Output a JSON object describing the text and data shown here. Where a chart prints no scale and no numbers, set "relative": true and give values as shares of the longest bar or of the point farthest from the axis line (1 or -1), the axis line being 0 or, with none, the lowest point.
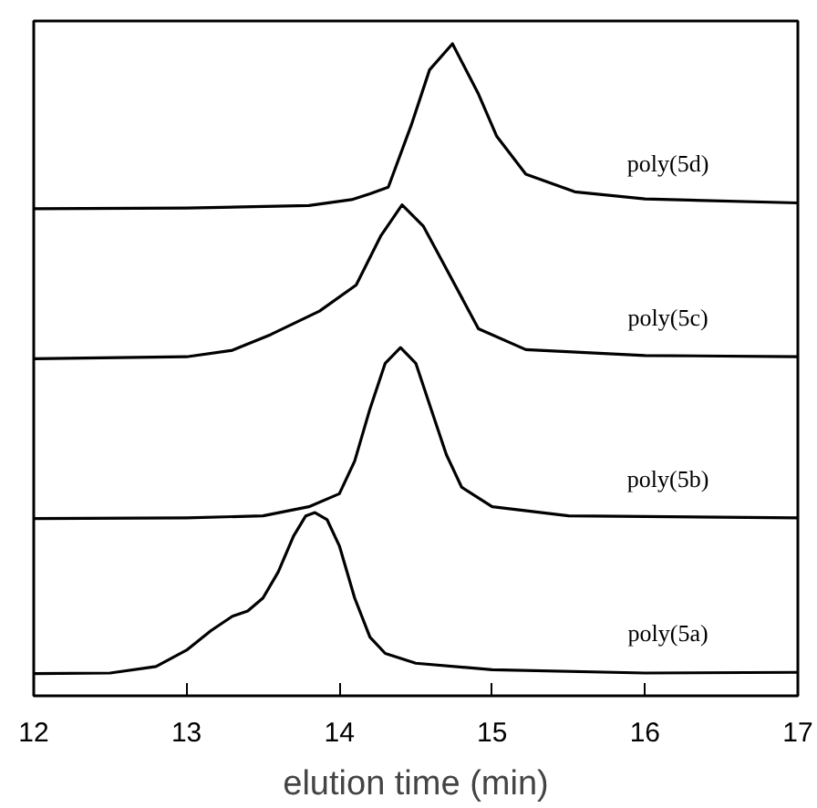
{
  "chart_data": {
    "type": "line",
    "relative": true,
    "xlabel": "elution time (min)",
    "xlim": [
      12,
      17
    ],
    "xticks": [
      12,
      13,
      14,
      15,
      16,
      17
    ],
    "grid": false,
    "legend": false,
    "marker": "none",
    "line_style": "solid",
    "series": [
      {
        "name": "poly(5a)",
        "color": "#000000",
        "x": [
          12.0,
          12.5,
          12.8,
          13.0,
          13.16,
          13.3,
          13.4,
          13.5,
          13.6,
          13.7,
          13.78,
          13.84,
          13.92,
          14.0,
          14.1,
          14.2,
          14.3,
          14.5,
          15.0,
          16.0,
          17.0
        ],
        "values": [
          0.034,
          0.035,
          0.045,
          0.07,
          0.1,
          0.122,
          0.13,
          0.15,
          0.19,
          0.245,
          0.276,
          0.281,
          0.27,
          0.23,
          0.15,
          0.09,
          0.065,
          0.05,
          0.04,
          0.035,
          0.036
        ]
      },
      {
        "name": "poly(5b)",
        "color": "#000000",
        "x": [
          12.0,
          13.0,
          13.5,
          13.8,
          14.0,
          14.1,
          14.2,
          14.3,
          14.4,
          14.5,
          14.6,
          14.7,
          14.8,
          15.0,
          15.5,
          17.0
        ],
        "values": [
          0.272,
          0.273,
          0.276,
          0.29,
          0.31,
          0.36,
          0.44,
          0.51,
          0.534,
          0.51,
          0.44,
          0.37,
          0.32,
          0.29,
          0.276,
          0.273
        ]
      },
      {
        "name": "poly(5c)",
        "color": "#000000",
        "x": [
          12.0,
          13.0,
          13.3,
          13.55,
          13.87,
          14.11,
          14.27,
          14.41,
          14.55,
          14.67,
          14.91,
          15.22,
          16.0,
          17.0
        ],
        "values": [
          0.517,
          0.52,
          0.53,
          0.554,
          0.59,
          0.63,
          0.705,
          0.753,
          0.72,
          0.668,
          0.563,
          0.531,
          0.522,
          0.52
        ]
      },
      {
        "name": "poly(5d)",
        "color": "#000000",
        "x": [
          12.0,
          13.0,
          13.8,
          14.08,
          14.2,
          14.32,
          14.47,
          14.59,
          14.74,
          14.91,
          15.03,
          15.22,
          15.54,
          16.0,
          17.0
        ],
        "values": [
          0.747,
          0.748,
          0.752,
          0.761,
          0.77,
          0.78,
          0.875,
          0.96,
          1.0,
          0.923,
          0.858,
          0.8,
          0.773,
          0.762,
          0.756
        ]
      }
    ]
  }
}
